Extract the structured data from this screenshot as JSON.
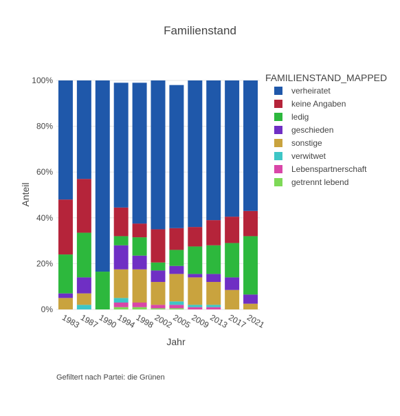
{
  "chart_data": {
    "type": "bar",
    "stacked": true,
    "normalized": true,
    "title": "Familienstand",
    "xlabel": "Jahr",
    "ylabel": "Anteil",
    "ylim": [
      0,
      1
    ],
    "y_tick_labels": [
      "0%",
      "20%",
      "40%",
      "60%",
      "80%",
      "100%"
    ],
    "y_tick_values": [
      0,
      0.2,
      0.4,
      0.6,
      0.8,
      1.0
    ],
    "legend_title": "FAMILIENSTAND_MAPPED",
    "legend_position": "right",
    "footnote": "Gefiltert nach Partei: die Grünen",
    "categories": [
      "1983",
      "1987",
      "1990",
      "1994",
      "1998",
      "2002",
      "2005",
      "2009",
      "2013",
      "2017",
      "2021"
    ],
    "series": [
      {
        "name": "getrennt lebend",
        "color": "#7ED957",
        "values": [
          0,
          0,
          0,
          0.01,
          0.01,
          0.005,
          0.005,
          0,
          0,
          0,
          0
        ]
      },
      {
        "name": "Lebenspartnerschaft",
        "color": "#D946A8",
        "values": [
          0,
          0,
          0,
          0.02,
          0.02,
          0.015,
          0.015,
          0.01,
          0.01,
          0,
          0
        ]
      },
      {
        "name": "verwitwet",
        "color": "#3EC6C6",
        "values": [
          0,
          0.02,
          0,
          0.02,
          0,
          0,
          0.015,
          0.01,
          0.01,
          0,
          0
        ]
      },
      {
        "name": "sonstige",
        "color": "#C9A33E",
        "values": [
          0.05,
          0.05,
          0,
          0.125,
          0.145,
          0.1,
          0.12,
          0.12,
          0.1,
          0.085,
          0.025
        ]
      },
      {
        "name": "geschieden",
        "color": "#6F2FC4",
        "values": [
          0.02,
          0.07,
          0,
          0.105,
          0.06,
          0.05,
          0.035,
          0.015,
          0.035,
          0.055,
          0.04
        ]
      },
      {
        "name": "ledig",
        "color": "#2DB83D",
        "values": [
          0.17,
          0.195,
          0.165,
          0.04,
          0.08,
          0.035,
          0.07,
          0.12,
          0.125,
          0.15,
          0.255
        ]
      },
      {
        "name": "keine Angaben",
        "color": "#B5243A",
        "values": [
          0.24,
          0.235,
          0,
          0.125,
          0.06,
          0.145,
          0.095,
          0.085,
          0.11,
          0.115,
          0.11
        ]
      },
      {
        "name": "verheiratet",
        "color": "#1F58AA",
        "values": [
          0.52,
          0.43,
          0.835,
          0.545,
          0.615,
          0.65,
          0.625,
          0.64,
          0.61,
          0.595,
          0.57
        ]
      }
    ],
    "legend_order": [
      "verheiratet",
      "keine Angaben",
      "ledig",
      "geschieden",
      "sonstige",
      "verwitwet",
      "Lebenspartnerschaft",
      "getrennt lebend"
    ]
  }
}
